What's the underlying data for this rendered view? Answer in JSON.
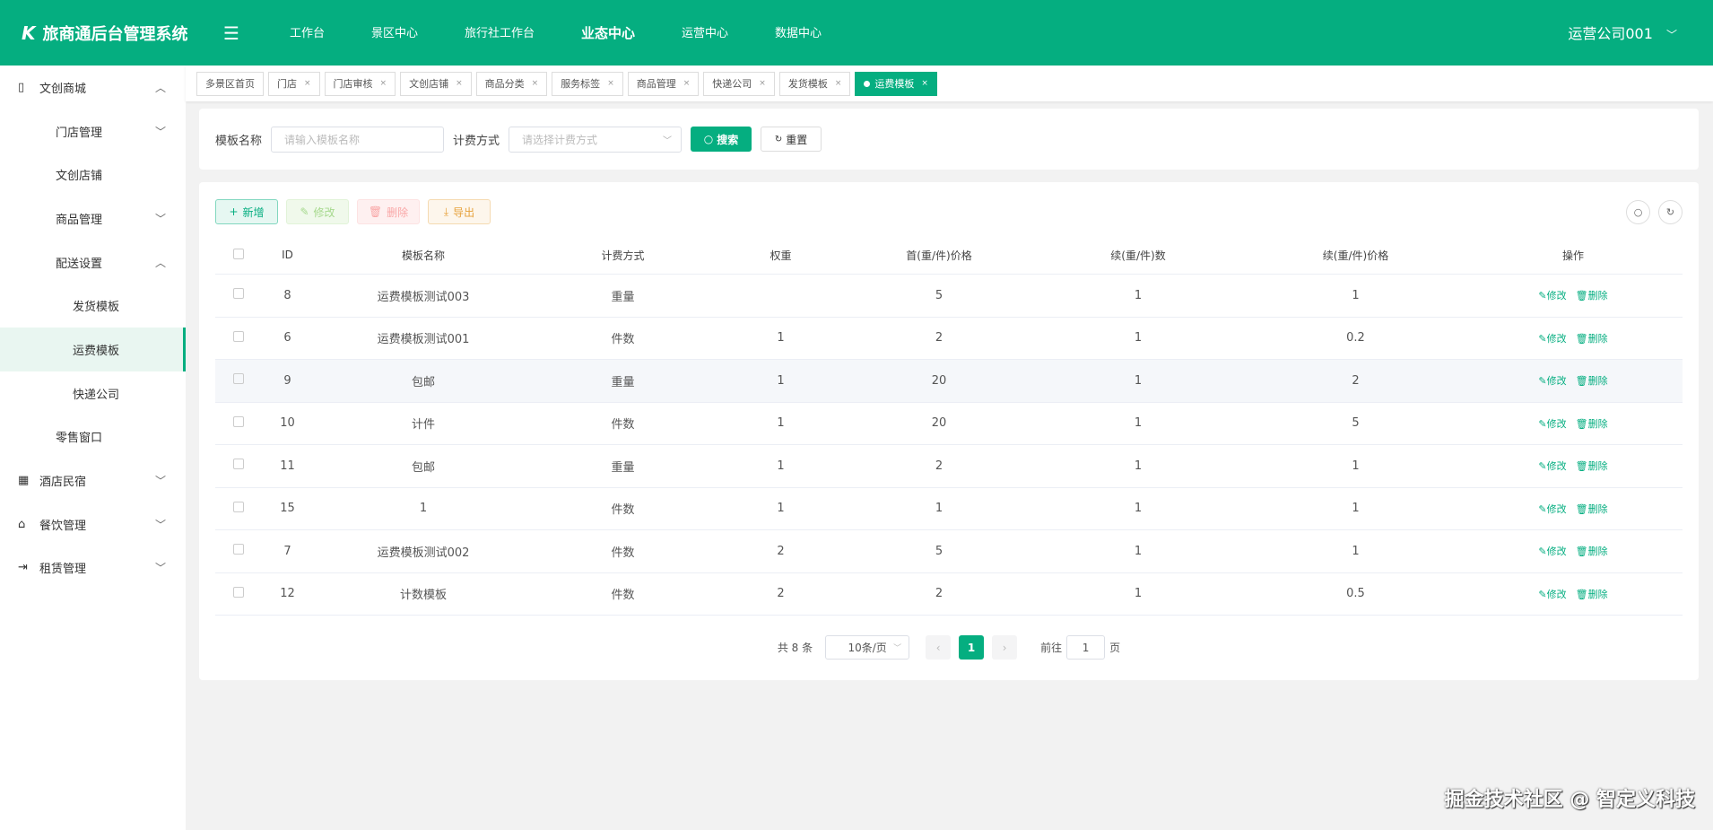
{
  "header": {
    "title": "旅商通后台管理系统",
    "nav": [
      "工作台",
      "景区中心",
      "旅行社工作台",
      "业态中心",
      "运营中心",
      "数据中心"
    ],
    "active_nav": "业态中心",
    "user": "运营公司001"
  },
  "sidebar": {
    "items": [
      {
        "label": "文创商城",
        "level": 1,
        "icon": "book-icon",
        "chevron": "up"
      },
      {
        "label": "门店管理",
        "level": 2,
        "chevron": "down"
      },
      {
        "label": "文创店铺",
        "level": 2
      },
      {
        "label": "商品管理",
        "level": 2,
        "chevron": "down"
      },
      {
        "label": "配送设置",
        "level": 2,
        "chevron": "up"
      },
      {
        "label": "发货模板",
        "level": 3
      },
      {
        "label": "运费模板",
        "level": 3,
        "active": true
      },
      {
        "label": "快递公司",
        "level": 3
      },
      {
        "label": "零售窗口",
        "level": 2
      },
      {
        "label": "酒店民宿",
        "level": 1,
        "icon": "building-icon",
        "chevron": "down"
      },
      {
        "label": "餐饮管理",
        "level": 1,
        "icon": "dish-icon",
        "chevron": "down"
      },
      {
        "label": "租赁管理",
        "level": 1,
        "icon": "exit-icon",
        "chevron": "down"
      }
    ]
  },
  "tabs": [
    {
      "label": "多景区首页",
      "closable": false
    },
    {
      "label": "门店"
    },
    {
      "label": "门店审核"
    },
    {
      "label": "文创店铺"
    },
    {
      "label": "商品分类"
    },
    {
      "label": "服务标签"
    },
    {
      "label": "商品管理"
    },
    {
      "label": "快递公司"
    },
    {
      "label": "发货模板"
    },
    {
      "label": "运费模板",
      "active": true
    }
  ],
  "search": {
    "name_label": "模板名称",
    "name_placeholder": "请输入模板名称",
    "method_label": "计费方式",
    "method_placeholder": "请选择计费方式",
    "search_btn": "搜索",
    "reset_btn": "重置"
  },
  "toolbar": {
    "add": "新增",
    "edit": "修改",
    "delete": "删除",
    "export": "导出"
  },
  "table": {
    "columns": [
      "ID",
      "模板名称",
      "计费方式",
      "权重",
      "首(重/件)价格",
      "续(重/件)数",
      "续(重/件)价格",
      "操作"
    ],
    "rows": [
      [
        "8",
        "运费模板测试003",
        "重量",
        "",
        "5",
        "1",
        "1"
      ],
      [
        "6",
        "运费模板测试001",
        "件数",
        "1",
        "2",
        "1",
        "0.2"
      ],
      [
        "9",
        "包邮",
        "重量",
        "1",
        "20",
        "1",
        "2"
      ],
      [
        "10",
        "计件",
        "件数",
        "1",
        "20",
        "1",
        "5"
      ],
      [
        "11",
        "包邮",
        "重量",
        "1",
        "2",
        "1",
        "1"
      ],
      [
        "15",
        "1",
        "件数",
        "1",
        "1",
        "1",
        "1"
      ],
      [
        "7",
        "运费模板测试002",
        "件数",
        "2",
        "5",
        "1",
        "1"
      ],
      [
        "12",
        "计数模板",
        "件数",
        "2",
        "2",
        "1",
        "0.5"
      ]
    ],
    "edit": "修改",
    "delete": "删除"
  },
  "pager": {
    "total": "共 8 条",
    "page_size": "10条/页",
    "current": "1",
    "goto_label": "前往",
    "goto_value": "1",
    "page_suffix": "页"
  },
  "watermark": "掘金技术社区 @ 智定义科技",
  "colors": {
    "primary": "#05ae80"
  }
}
